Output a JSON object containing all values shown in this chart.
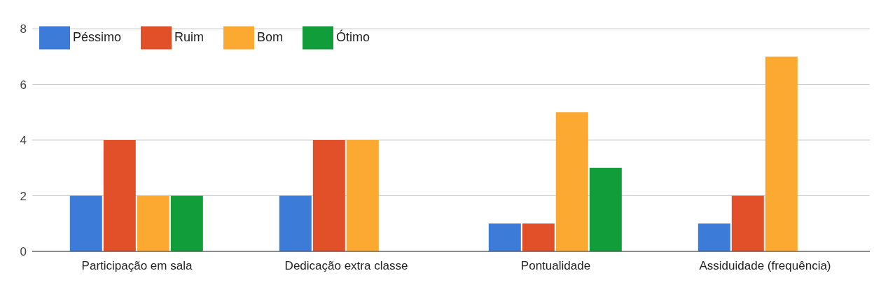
{
  "chart_data": {
    "type": "bar",
    "categories": [
      "Participação em sala",
      "Dedicação extra classe",
      "Pontualidade",
      "Assiduidade (frequência)"
    ],
    "series": [
      {
        "name": "Péssimo",
        "color": "#3d7bd9",
        "values": [
          2,
          2,
          1,
          1
        ]
      },
      {
        "name": "Ruim",
        "color": "#e2502a",
        "values": [
          4,
          4,
          1,
          2
        ]
      },
      {
        "name": "Bom",
        "color": "#fba931",
        "values": [
          2,
          4,
          5,
          7
        ]
      },
      {
        "name": "Ótimo",
        "color": "#119e3a",
        "values": [
          2,
          0,
          3,
          0
        ]
      }
    ],
    "ylim": [
      0,
      8
    ],
    "yticks": [
      0,
      2,
      4,
      6,
      8
    ],
    "grid": "y",
    "legend": "top left"
  }
}
